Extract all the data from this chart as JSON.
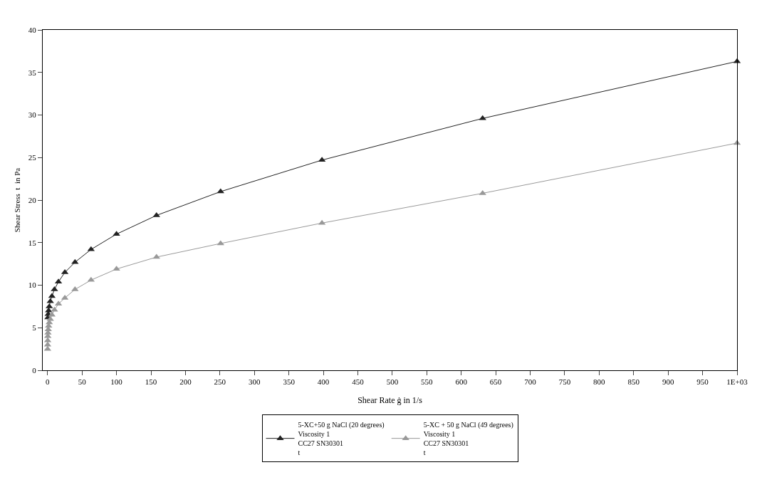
{
  "chart_data": {
    "type": "line",
    "xlabel": "Shear Rate ġ in 1/s",
    "ylabel": "Shear Stress  t  in Pa",
    "x": [
      0.1,
      0.158,
      0.251,
      0.398,
      0.631,
      1,
      1.58,
      2.51,
      3.98,
      6.31,
      10,
      15.8,
      25.1,
      39.8,
      63.1,
      100,
      158,
      251,
      398,
      631,
      1000
    ],
    "series": [
      {
        "name": "5-XC+50 g NaCl (20 degrees)\nViscosity 1\nCC27 SN30301\nt",
        "color": "#222222",
        "values": [
          null,
          null,
          null,
          null,
          6.2,
          6.6,
          7.0,
          7.5,
          8.1,
          8.7,
          9.5,
          10.4,
          11.5,
          12.7,
          14.2,
          16.0,
          18.2,
          21.0,
          24.7,
          29.6,
          36.3
        ]
      },
      {
        "name": "5-XC + 50 g NaCl (49 degrees)\nViscosity 1\nCC27 SN30301\nt",
        "color": "#999999",
        "values": [
          2.5,
          3.0,
          3.5,
          4.0,
          4.4,
          4.8,
          5.2,
          5.6,
          6.0,
          6.5,
          7.1,
          7.8,
          8.5,
          9.5,
          10.6,
          11.9,
          13.3,
          14.9,
          17.3,
          20.8,
          26.7
        ]
      }
    ],
    "xlim": [
      -7,
      1000
    ],
    "xticks": [
      0,
      50,
      100,
      150,
      200,
      250,
      300,
      350,
      400,
      450,
      500,
      550,
      600,
      650,
      700,
      750,
      800,
      850,
      900,
      950,
      {
        "value": 1000,
        "label": "1E+03"
      }
    ],
    "ylim": [
      0,
      40
    ],
    "yticks": [
      0,
      5,
      10,
      15,
      20,
      25,
      30,
      35,
      40
    ],
    "grid": false,
    "legend": "bottom",
    "marker": "triangle",
    "line_style": "solid"
  }
}
